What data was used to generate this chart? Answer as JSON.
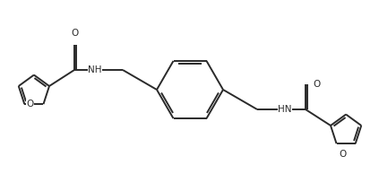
{
  "background_color": "#ffffff",
  "line_color": "#2a2a2a",
  "line_width": 1.4,
  "dbo": 0.012,
  "figsize": [
    4.23,
    2.13
  ],
  "dpi": 100,
  "xlim": [
    0,
    4.23
  ],
  "ylim": [
    0,
    2.13
  ]
}
